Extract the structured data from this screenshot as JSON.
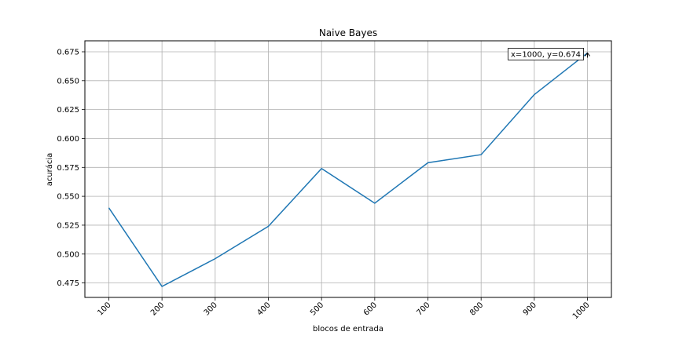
{
  "chart_data": {
    "type": "line",
    "title": "Naive Bayes",
    "xlabel": "blocos de entrada",
    "ylabel": "acurácia",
    "x": [
      100,
      200,
      300,
      400,
      500,
      600,
      700,
      800,
      900,
      1000
    ],
    "x_tick_labels": [
      "100",
      "200",
      "300",
      "400",
      "500",
      "600",
      "700",
      "800",
      "900",
      "1000"
    ],
    "series": [
      {
        "values": [
          0.54,
          0.472,
          0.496,
          0.524,
          0.574,
          0.544,
          0.579,
          0.586,
          0.638,
          0.674
        ],
        "color": "#1f77b4"
      }
    ],
    "y_ticks": [
      0.475,
      0.5,
      0.525,
      0.55,
      0.575,
      0.6,
      0.625,
      0.65,
      0.675
    ],
    "y_tick_labels": [
      "0.475",
      "0.500",
      "0.525",
      "0.550",
      "0.575",
      "0.600",
      "0.625",
      "0.650",
      "0.675"
    ],
    "xlim": [
      55,
      1045
    ],
    "ylim": [
      0.4625,
      0.6845
    ],
    "grid": true,
    "annotation": {
      "text": "x=1000, y=0.674",
      "x": 1000,
      "y": 0.674
    }
  }
}
